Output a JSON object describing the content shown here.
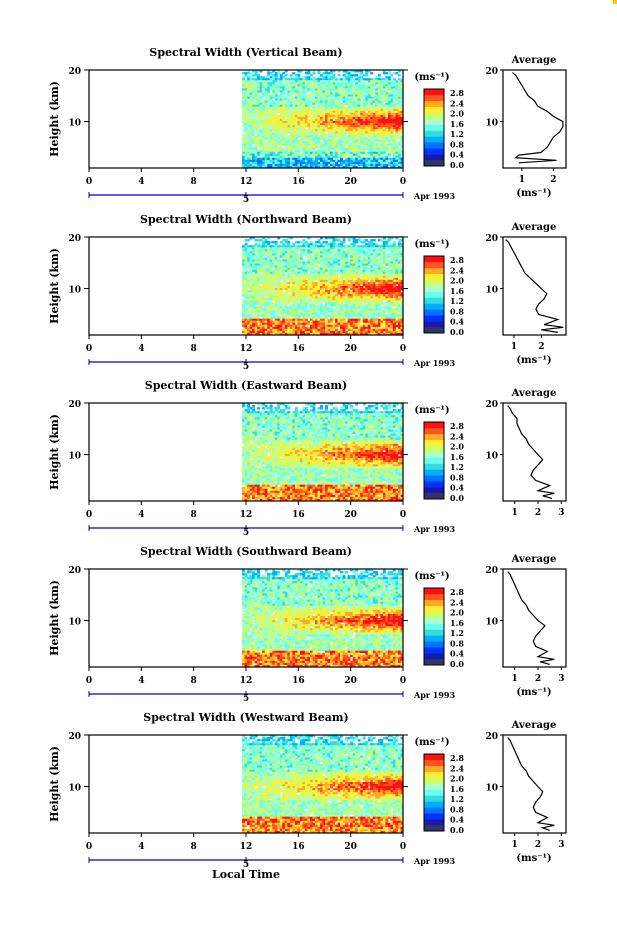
{
  "colors": {
    "scale": [
      "#333366",
      "#1a1aa8",
      "#0033ff",
      "#0073ff",
      "#00b0ff",
      "#33dddd",
      "#66ffee",
      "#aaffcc",
      "#ccff66",
      "#ffee33",
      "#ffaa22",
      "#ff5522",
      "#ff1111"
    ],
    "frame": "#000000",
    "date_marker": "#0000cc"
  },
  "x_axis": {
    "ticks": [
      "0",
      "4",
      "8",
      "12",
      "16",
      "20",
      "0"
    ],
    "date_label": "5",
    "month_label": "Apr 1993",
    "xlabel": "Local Time"
  },
  "colorbar": {
    "unit": "(ms⁻¹)",
    "labels": [
      "2.8",
      "2.4",
      "2.0",
      "1.6",
      "1.2",
      "0.8",
      "0.4",
      "0.0"
    ]
  },
  "chart_data": [
    {
      "type": "heatmap",
      "title": "Spectral Width (Vertical Beam)",
      "ylabel": "Height (km)",
      "xlim": [
        0,
        24
      ],
      "ylim": [
        1,
        20
      ],
      "y_ticks": [
        "20",
        "10"
      ],
      "data_x_range": [
        11.7,
        24
      ],
      "zlim": [
        0,
        2.8
      ],
      "z_unit": "ms⁻¹",
      "average_profile": {
        "title": "Average",
        "xlabel": "(ms⁻¹)",
        "x_ticks": [
          "1",
          "2"
        ],
        "xlim": [
          0.4,
          2.4
        ],
        "height_km": [
          2,
          2.5,
          3,
          3.5,
          4,
          5,
          6,
          7,
          8,
          9,
          10,
          11,
          12,
          13,
          14,
          15,
          16,
          17,
          18,
          19,
          19.5
        ],
        "values": [
          0.9,
          2.1,
          0.8,
          0.9,
          1.6,
          1.8,
          1.9,
          2.0,
          2.2,
          2.3,
          2.3,
          2.0,
          1.8,
          1.5,
          1.4,
          1.2,
          1.1,
          1.0,
          0.9,
          0.8,
          0.7
        ]
      }
    },
    {
      "type": "heatmap",
      "title": "Spectral Width (Northward Beam)",
      "ylabel": "Height (km)",
      "xlim": [
        0,
        24
      ],
      "ylim": [
        1,
        20
      ],
      "y_ticks": [
        "20",
        "10"
      ],
      "data_x_range": [
        11.7,
        24
      ],
      "zlim": [
        0,
        2.8
      ],
      "z_unit": "ms⁻¹",
      "average_profile": {
        "title": "Average",
        "xlabel": "(ms⁻¹)",
        "x_ticks": [
          "1",
          "2"
        ],
        "xlim": [
          0.6,
          2.9
        ],
        "height_km": [
          1.5,
          2,
          2.5,
          3,
          4,
          5,
          6,
          7,
          8,
          9,
          10,
          11,
          12,
          13,
          14,
          15,
          16,
          17,
          18,
          19,
          19.5
        ],
        "values": [
          2.6,
          2.0,
          2.8,
          2.1,
          2.6,
          1.9,
          1.8,
          1.9,
          2.1,
          2.2,
          2.0,
          1.8,
          1.6,
          1.4,
          1.3,
          1.2,
          1.1,
          1.0,
          0.9,
          0.8,
          0.7
        ]
      }
    },
    {
      "type": "heatmap",
      "title": "Spectral Width (Eastward Beam)",
      "ylabel": "Height (km)",
      "xlim": [
        0,
        24
      ],
      "ylim": [
        1,
        20
      ],
      "y_ticks": [
        "20",
        "10"
      ],
      "data_x_range": [
        11.7,
        24
      ],
      "zlim": [
        0,
        2.8
      ],
      "z_unit": "ms⁻¹",
      "average_profile": {
        "title": "Average",
        "xlabel": "",
        "x_ticks": [
          "1",
          "2",
          "3"
        ],
        "xlim": [
          0.5,
          3.2
        ],
        "height_km": [
          1.5,
          2,
          2.5,
          3,
          4,
          5,
          6,
          7,
          8,
          9,
          10,
          11,
          12,
          13,
          14,
          15,
          16,
          17,
          18,
          19,
          19.5
        ],
        "values": [
          2.6,
          2.2,
          2.7,
          2.0,
          2.5,
          1.9,
          1.7,
          1.8,
          2.0,
          2.2,
          2.0,
          1.8,
          1.6,
          1.5,
          1.3,
          1.2,
          1.1,
          1.1,
          0.9,
          0.8,
          0.7
        ]
      }
    },
    {
      "type": "heatmap",
      "title": "Spectral Width (Southward Beam)",
      "ylabel": "Height (km)",
      "xlim": [
        0,
        24
      ],
      "ylim": [
        1,
        20
      ],
      "y_ticks": [
        "20",
        "10"
      ],
      "data_x_range": [
        11.7,
        24
      ],
      "zlim": [
        0,
        2.8
      ],
      "z_unit": "ms⁻¹",
      "average_profile": {
        "title": "Average",
        "xlabel": "(ms⁻¹)",
        "x_ticks": [
          "1",
          "2",
          "3"
        ],
        "xlim": [
          0.5,
          3.2
        ],
        "height_km": [
          1.5,
          2,
          2.5,
          3,
          4,
          5,
          6,
          7,
          8,
          9,
          10,
          11,
          12,
          13,
          14,
          15,
          16,
          17,
          18,
          19,
          19.5
        ],
        "values": [
          2.5,
          2.1,
          2.7,
          2.0,
          2.4,
          1.9,
          1.8,
          1.9,
          2.1,
          2.3,
          2.0,
          1.8,
          1.6,
          1.5,
          1.3,
          1.2,
          1.1,
          1.0,
          0.9,
          0.8,
          0.7
        ]
      }
    },
    {
      "type": "heatmap",
      "title": "Spectral Width (Westward Beam)",
      "ylabel": "Height (km)",
      "xlim": [
        0,
        24
      ],
      "ylim": [
        1,
        20
      ],
      "y_ticks": [
        "20",
        "10"
      ],
      "data_x_range": [
        11.7,
        24
      ],
      "zlim": [
        0,
        2.8
      ],
      "z_unit": "ms⁻¹",
      "average_profile": {
        "title": "Average",
        "xlabel": "(ms⁻¹)",
        "x_ticks": [
          "1",
          "2",
          "3"
        ],
        "xlim": [
          0.5,
          3.2
        ],
        "height_km": [
          1.5,
          2,
          2.5,
          3,
          4,
          5,
          6,
          7,
          8,
          9,
          10,
          11,
          12,
          13,
          14,
          15,
          16,
          17,
          18,
          19,
          19.5
        ],
        "values": [
          2.5,
          2.2,
          2.7,
          2.0,
          2.4,
          1.9,
          1.8,
          1.9,
          2.1,
          2.2,
          2.0,
          1.8,
          1.6,
          1.5,
          1.3,
          1.2,
          1.1,
          1.0,
          0.9,
          0.8,
          0.7
        ]
      }
    }
  ]
}
